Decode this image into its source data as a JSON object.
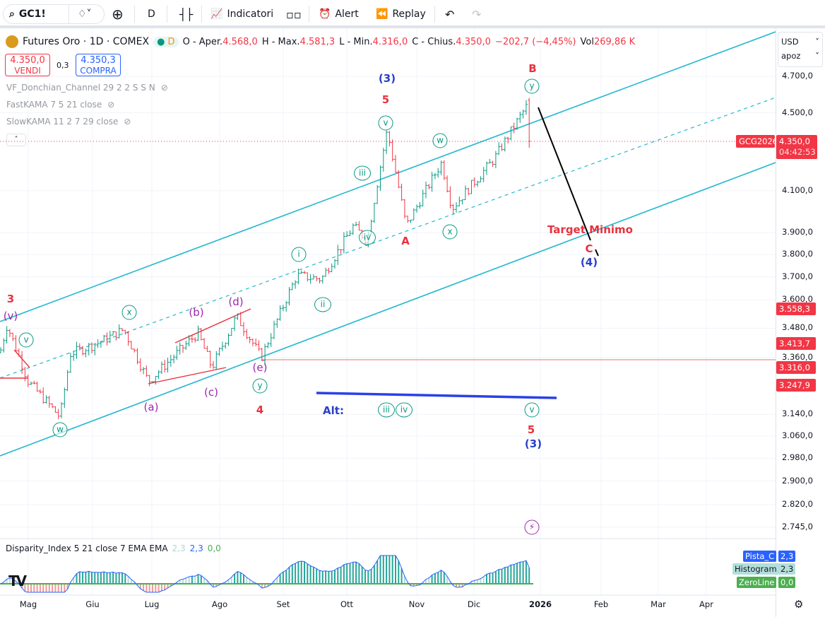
{
  "toolbar": {
    "symbol": "GC1!",
    "interval": "D",
    "indicators": "Indicatori",
    "alert": "Alert",
    "replay": "Replay"
  },
  "legend": {
    "title": "Futures Oro · 1D · COMEX",
    "badge": "D",
    "open_label": "O - Aper.",
    "open": "4.568,0",
    "high_label": "H - Max.",
    "high": "4.581,3",
    "low_label": "L - Min.",
    "low": "4.316,0",
    "close_label": "C - Chius.",
    "close": "4.350,0",
    "change": "−202,7 (−4,45%)",
    "vol_label": "Vol",
    "vol": "269,86 K"
  },
  "trade": {
    "sell_price": "4.350,0",
    "sell_label": "VENDI",
    "spread": "0,3",
    "buy_price": "4.350,3",
    "buy_label": "COMPRA"
  },
  "indicators": [
    "VF_Donchian_Channel 29 2 2 S S N",
    "FastKAMA 7 5 21 close",
    "SlowKAMA 11 2 7 29 close"
  ],
  "axis": {
    "currency": "USD",
    "scale": "apoz",
    "ticks": [
      "4.700,0",
      "4.500,0",
      "4.100,0",
      "3.900,0",
      "3.800,0",
      "3.700,0",
      "3.600,0",
      "3.480,0",
      "3.360,0",
      "3.140,0",
      "3.060,0",
      "2.980,0",
      "2.900,0",
      "2.820,0",
      "2.745,0"
    ],
    "badges": {
      "symbol": "GCG2026",
      "price": "4.350,0",
      "countdown": "04:42:53",
      "b1": "3.558,3",
      "b2": "3.413,7",
      "b3": "3.316,0",
      "b4": "3.247,9"
    }
  },
  "months": [
    "Mag",
    "Giu",
    "Lug",
    "Ago",
    "Set",
    "Ott",
    "Nov",
    "Dic",
    "2026",
    "Feb",
    "Mar",
    "Apr"
  ],
  "annotations": [
    "3",
    "(v)",
    "v",
    "w",
    "x",
    "(a)",
    "(b)",
    "(c)",
    "(d)",
    "(e)",
    "y",
    "4",
    "i",
    "ii",
    "iii",
    "iv",
    "v",
    "5",
    "(3)",
    "A",
    "w",
    "x",
    "y",
    "B",
    "Target Minimo",
    "C",
    "(4)",
    "Alt:",
    "iii",
    "iv",
    "v",
    "5",
    "(3)"
  ],
  "oscillator": {
    "title": "Disparity_Index 5 21 close 7 EMA EMA",
    "v1": "2,3",
    "v2": "2,3",
    "v3": "0,0",
    "pista_label": "Pista_C",
    "pista": "2,3",
    "hist_label": "Histogram",
    "hist": "2,3",
    "zero_label": "ZeroLine",
    "zero": "0,0"
  },
  "colors": {
    "up": "#089981",
    "down": "#f23645",
    "channel": "#22b8cf",
    "wave_red": "#e8323f",
    "wave_blue": "#2a40c8",
    "wave_purple": "#9c27b0"
  },
  "chart_data": {
    "type": "ohlc",
    "scale": "log",
    "ylim": [
      2745,
      4700
    ],
    "last": {
      "open": 4568.0,
      "high": 4581.3,
      "low": 4316.0,
      "close": 4350.0
    },
    "price_path": [
      [
        0,
        3380
      ],
      [
        10,
        3493
      ],
      [
        40,
        3265
      ],
      [
        85,
        3130
      ],
      [
        100,
        3377
      ],
      [
        140,
        3420
      ],
      [
        175,
        3475
      ],
      [
        210,
        3265
      ],
      [
        280,
        3460
      ],
      [
        300,
        3320
      ],
      [
        335,
        3530
      ],
      [
        370,
        3360
      ],
      [
        420,
        3706
      ],
      [
        455,
        3690
      ],
      [
        500,
        3930
      ],
      [
        520,
        3865
      ],
      [
        548,
        4405
      ],
      [
        575,
        3930
      ],
      [
        625,
        4240
      ],
      [
        640,
        4015
      ],
      [
        700,
        4260
      ],
      [
        752,
        4575
      ],
      [
        755,
        4350
      ]
    ]
  }
}
